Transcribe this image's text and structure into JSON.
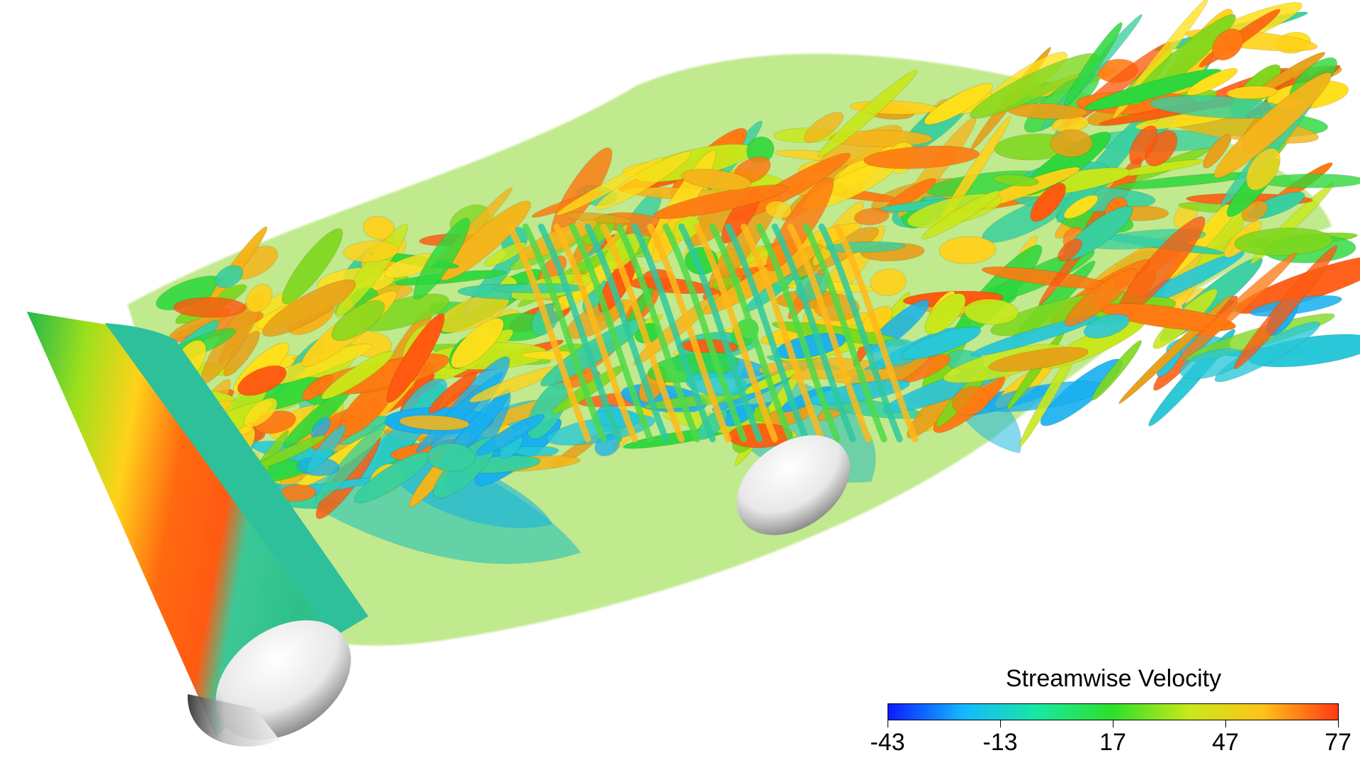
{
  "legend": {
    "title": "Streamwise Velocity",
    "ticks": [
      "-43",
      "-13",
      "17",
      "47",
      "77"
    ],
    "colormap": [
      "#0a1cff",
      "#14b8ff",
      "#18e8a0",
      "#2ee02a",
      "#c8e81a",
      "#ffc21a",
      "#ff3a14"
    ]
  },
  "image": {
    "subject": "turbulent-wake-isosurfaces",
    "objects": [
      "upstream-cylinder",
      "downstream-cylinder",
      "vortex-structures"
    ]
  }
}
